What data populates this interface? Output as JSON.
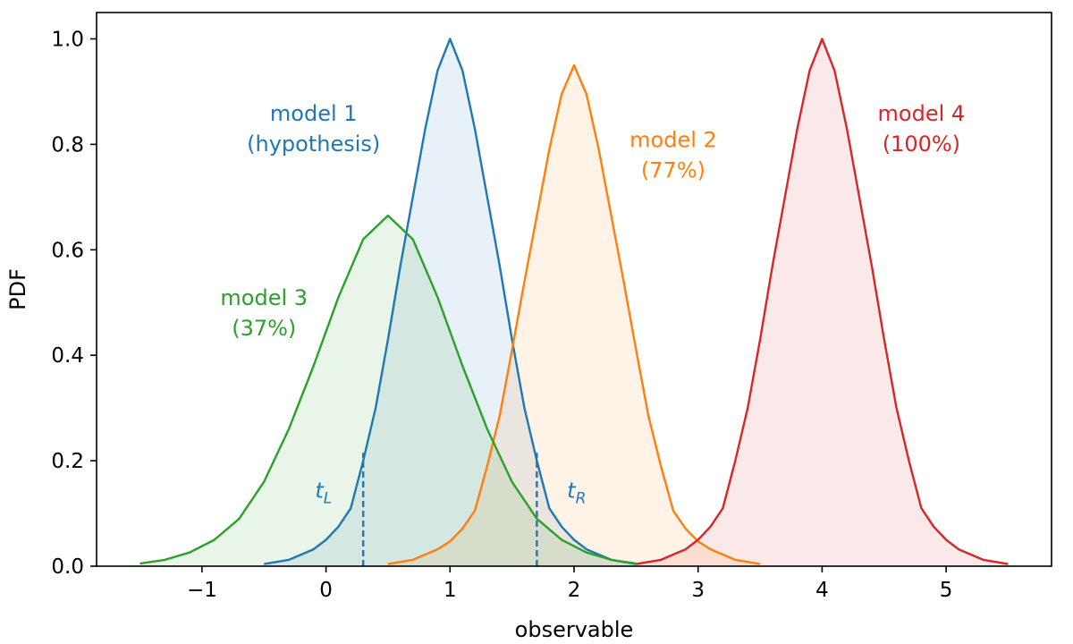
{
  "chart_data": {
    "type": "line",
    "xlabel": "observable",
    "ylabel": "PDF",
    "xlim": [
      -1.85,
      5.85
    ],
    "ylim": [
      0,
      1.05
    ],
    "xticks": [
      -1,
      0,
      1,
      2,
      3,
      4,
      5
    ],
    "xtick_labels": [
      "−1",
      "0",
      "1",
      "2",
      "3",
      "4",
      "5"
    ],
    "yticks": [
      0.0,
      0.2,
      0.4,
      0.6,
      0.8,
      1.0
    ],
    "ytick_labels": [
      "0.0",
      "0.2",
      "0.4",
      "0.6",
      "0.8",
      "1.0"
    ],
    "grid": false,
    "series": [
      {
        "color": "#1f77b4",
        "x": [
          -0.5,
          -0.3,
          -0.1,
          0.0,
          0.1,
          0.2,
          0.3,
          0.4,
          0.5,
          0.6,
          0.7,
          0.8,
          0.9,
          1.0,
          1.1,
          1.2,
          1.3,
          1.4,
          1.5,
          1.6,
          1.7,
          1.8,
          1.9,
          2.0,
          2.1,
          2.3,
          2.5
        ],
        "y": [
          0.004,
          0.012,
          0.032,
          0.05,
          0.075,
          0.11,
          0.2,
          0.3,
          0.43,
          0.57,
          0.7,
          0.83,
          0.94,
          1.0,
          0.94,
          0.83,
          0.7,
          0.57,
          0.43,
          0.3,
          0.2,
          0.11,
          0.075,
          0.05,
          0.032,
          0.012,
          0.004
        ]
      },
      {
        "color": "#ff7f0e",
        "x": [
          0.5,
          0.7,
          0.9,
          1.0,
          1.1,
          1.2,
          1.3,
          1.4,
          1.5,
          1.6,
          1.7,
          1.8,
          1.9,
          2.0,
          2.1,
          2.2,
          2.3,
          2.4,
          2.5,
          2.6,
          2.7,
          2.8,
          2.9,
          3.0,
          3.1,
          3.3,
          3.5
        ],
        "y": [
          0.004,
          0.012,
          0.032,
          0.047,
          0.071,
          0.105,
          0.19,
          0.285,
          0.41,
          0.54,
          0.665,
          0.79,
          0.895,
          0.95,
          0.895,
          0.79,
          0.665,
          0.54,
          0.41,
          0.285,
          0.19,
          0.105,
          0.071,
          0.047,
          0.032,
          0.012,
          0.004
        ]
      },
      {
        "color": "#2ca02c",
        "x": [
          -1.5,
          -1.3,
          -1.1,
          -0.9,
          -0.7,
          -0.5,
          -0.3,
          -0.1,
          0.1,
          0.3,
          0.5,
          0.7,
          0.9,
          1.1,
          1.3,
          1.5,
          1.7,
          1.9,
          2.1,
          2.3,
          2.5
        ],
        "y": [
          0.005,
          0.012,
          0.026,
          0.05,
          0.09,
          0.16,
          0.26,
          0.38,
          0.51,
          0.62,
          0.665,
          0.62,
          0.51,
          0.38,
          0.26,
          0.16,
          0.09,
          0.05,
          0.026,
          0.012,
          0.005
        ]
      },
      {
        "color": "#d62728",
        "x": [
          2.5,
          2.7,
          2.9,
          3.0,
          3.1,
          3.2,
          3.3,
          3.4,
          3.5,
          3.6,
          3.7,
          3.8,
          3.9,
          4.0,
          4.1,
          4.2,
          4.3,
          4.4,
          4.5,
          4.6,
          4.7,
          4.8,
          4.9,
          5.0,
          5.1,
          5.3,
          5.5
        ],
        "y": [
          0.004,
          0.012,
          0.032,
          0.05,
          0.075,
          0.11,
          0.2,
          0.3,
          0.43,
          0.57,
          0.7,
          0.83,
          0.94,
          1.0,
          0.94,
          0.83,
          0.7,
          0.57,
          0.43,
          0.3,
          0.2,
          0.11,
          0.075,
          0.05,
          0.032,
          0.012,
          0.004
        ]
      }
    ],
    "annotations": [
      {
        "lines": [
          "model 1",
          "(hypothesis)"
        ],
        "x": -0.1,
        "y": 0.845,
        "color": "#1f77b4"
      },
      {
        "lines": [
          "model 2",
          "(77%)"
        ],
        "x": 2.8,
        "y": 0.795,
        "color": "#ff7f0e"
      },
      {
        "lines": [
          "model 3",
          "(37%)"
        ],
        "x": -0.5,
        "y": 0.495,
        "color": "#2ca02c"
      },
      {
        "lines": [
          "model 4",
          "(100%)"
        ],
        "x": 4.8,
        "y": 0.845,
        "color": "#d62728"
      }
    ],
    "thresholds": [
      {
        "label": "t",
        "sub": "L",
        "x": 0.3,
        "y_top": 0.215,
        "label_x": -0.02,
        "label_y": 0.13,
        "color": "#1f77b4"
      },
      {
        "label": "t",
        "sub": "R",
        "x": 1.7,
        "y_top": 0.215,
        "label_x": 2.02,
        "label_y": 0.13,
        "color": "#1f77b4"
      }
    ]
  }
}
